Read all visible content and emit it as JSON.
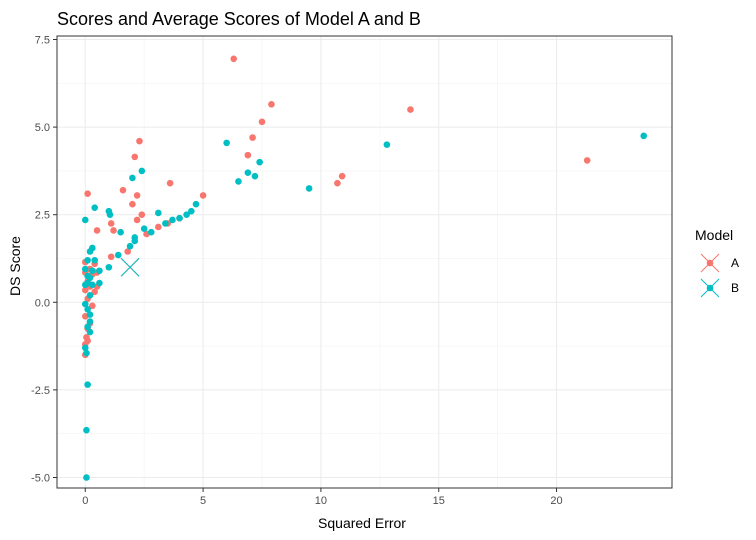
{
  "chart_data": {
    "type": "scatter",
    "title": "Scores and Average Scores of Model A and B",
    "xlabel": "Squared Error",
    "ylabel": "DS Score",
    "xlim": [
      -1.2,
      24.9
    ],
    "ylim": [
      -5.3,
      7.6
    ],
    "x_ticks": [
      0,
      5,
      10,
      15,
      20
    ],
    "y_ticks": [
      -5.0,
      -2.5,
      0.0,
      2.5,
      5.0,
      7.5
    ],
    "x_tick_labels": [
      "0",
      "5",
      "10",
      "15",
      "20"
    ],
    "y_tick_labels": [
      "-5.0",
      "-2.5",
      "0.0",
      "2.5",
      "5.0",
      "7.5"
    ],
    "grid": true,
    "legend": {
      "title": "Model",
      "position": "right"
    },
    "series": [
      {
        "name": "A",
        "color": "#F8766D",
        "points": [
          [
            0.1,
            3.1
          ],
          [
            0.0,
            1.15
          ],
          [
            0.0,
            0.85
          ],
          [
            0.1,
            0.6
          ],
          [
            0.2,
            0.95
          ],
          [
            0.3,
            0.8
          ],
          [
            0.4,
            1.1
          ],
          [
            0.5,
            0.85
          ],
          [
            0.2,
            0.45
          ],
          [
            0.4,
            0.3
          ],
          [
            0.5,
            0.45
          ],
          [
            0.0,
            0.35
          ],
          [
            0.1,
            0.1
          ],
          [
            0.3,
            -0.1
          ],
          [
            0.0,
            -0.4
          ],
          [
            0.1,
            -0.75
          ],
          [
            0.2,
            -0.6
          ],
          [
            0.05,
            -1.0
          ],
          [
            0.1,
            -1.1
          ],
          [
            0.0,
            -1.2
          ],
          [
            0.0,
            -1.5
          ],
          [
            0.5,
            2.05
          ],
          [
            1.1,
            2.25
          ],
          [
            1.2,
            2.05
          ],
          [
            1.1,
            1.3
          ],
          [
            1.6,
            3.2
          ],
          [
            1.8,
            1.45
          ],
          [
            2.0,
            2.8
          ],
          [
            2.1,
            4.15
          ],
          [
            2.3,
            4.6
          ],
          [
            2.2,
            3.05
          ],
          [
            2.2,
            2.35
          ],
          [
            2.4,
            2.5
          ],
          [
            2.6,
            1.95
          ],
          [
            3.1,
            2.15
          ],
          [
            3.6,
            3.4
          ],
          [
            3.5,
            2.25
          ],
          [
            4.0,
            2.4
          ],
          [
            5.0,
            3.05
          ],
          [
            6.3,
            6.95
          ],
          [
            6.9,
            4.2
          ],
          [
            7.1,
            4.7
          ],
          [
            7.5,
            5.15
          ],
          [
            7.9,
            5.65
          ],
          [
            10.7,
            3.4
          ],
          [
            10.9,
            3.6
          ],
          [
            13.8,
            5.5
          ],
          [
            21.3,
            4.05
          ]
        ],
        "average": [
          1.9,
          1.0
        ]
      },
      {
        "name": "B",
        "color": "#00BFC4",
        "points": [
          [
            0.0,
            2.35
          ],
          [
            0.2,
            1.45
          ],
          [
            0.3,
            1.55
          ],
          [
            0.4,
            2.7
          ],
          [
            0.1,
            1.2
          ],
          [
            0.4,
            1.2
          ],
          [
            0.0,
            0.95
          ],
          [
            0.1,
            0.75
          ],
          [
            0.2,
            0.7
          ],
          [
            0.3,
            0.9
          ],
          [
            0.6,
            0.9
          ],
          [
            0.1,
            0.55
          ],
          [
            0.3,
            0.5
          ],
          [
            0.6,
            0.55
          ],
          [
            0.0,
            0.5
          ],
          [
            0.2,
            0.2
          ],
          [
            0.0,
            -0.05
          ],
          [
            0.1,
            -0.2
          ],
          [
            0.2,
            -0.35
          ],
          [
            0.2,
            -0.55
          ],
          [
            0.1,
            -0.7
          ],
          [
            0.2,
            -0.85
          ],
          [
            0.0,
            -1.3
          ],
          [
            0.05,
            -1.45
          ],
          [
            0.1,
            -2.35
          ],
          [
            0.05,
            -3.65
          ],
          [
            0.05,
            -5.0
          ],
          [
            1.0,
            2.6
          ],
          [
            1.05,
            2.5
          ],
          [
            1.0,
            1.0
          ],
          [
            1.4,
            1.35
          ],
          [
            1.5,
            2.0
          ],
          [
            1.9,
            1.6
          ],
          [
            2.0,
            3.55
          ],
          [
            2.1,
            1.75
          ],
          [
            2.1,
            1.85
          ],
          [
            2.4,
            3.75
          ],
          [
            2.5,
            2.1
          ],
          [
            2.8,
            2.0
          ],
          [
            3.1,
            2.55
          ],
          [
            3.4,
            2.25
          ],
          [
            3.7,
            2.35
          ],
          [
            4.0,
            2.4
          ],
          [
            4.3,
            2.5
          ],
          [
            4.5,
            2.6
          ],
          [
            4.7,
            2.8
          ],
          [
            6.0,
            4.55
          ],
          [
            6.5,
            3.45
          ],
          [
            6.9,
            3.7
          ],
          [
            7.2,
            3.6
          ],
          [
            7.4,
            4.0
          ],
          [
            9.5,
            3.25
          ],
          [
            12.8,
            4.5
          ],
          [
            23.7,
            4.75
          ]
        ],
        "average": [
          1.9,
          1.0
        ]
      }
    ]
  }
}
